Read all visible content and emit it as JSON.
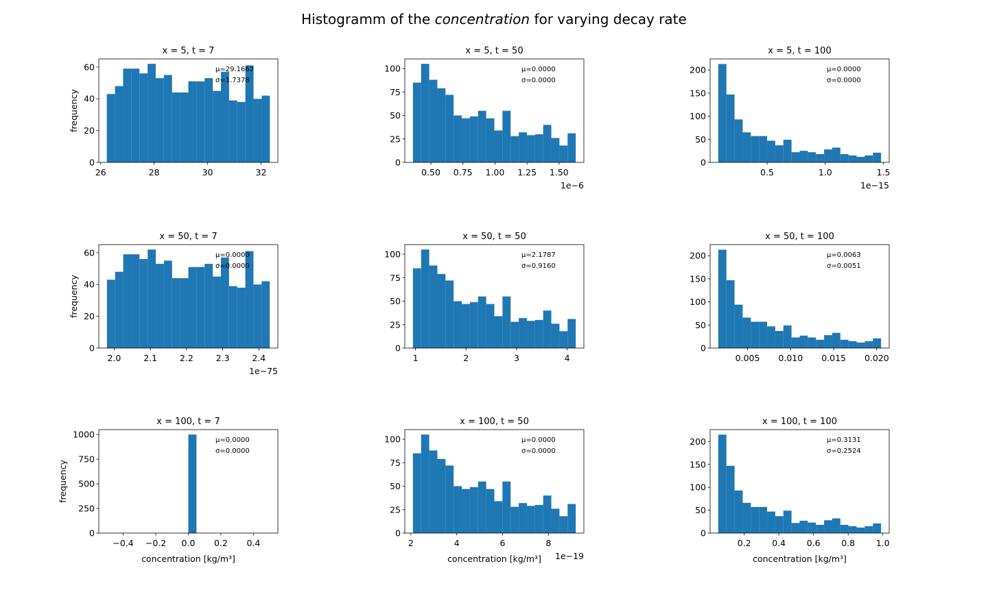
{
  "title_parts": [
    "Histogramm of the ",
    "concentration",
    " for varying decay rate"
  ],
  "chart_data": [
    {
      "type": "histogram",
      "title": "x = 5, t = 7",
      "color": "#1f77b4",
      "bins": [
        26.23,
        26.535,
        26.84,
        27.145,
        27.45,
        27.755,
        28.06,
        28.365,
        28.67,
        28.975,
        29.28,
        29.585,
        29.89,
        30.195,
        30.5,
        30.805,
        31.11,
        31.415,
        31.72,
        32.025,
        32.33
      ],
      "counts": [
        43,
        48,
        59,
        59,
        56,
        62,
        53,
        55,
        44,
        44,
        51,
        51,
        53,
        45,
        57,
        39,
        38,
        61,
        40,
        42
      ],
      "xlim": [
        25.93,
        32.63
      ],
      "ylim": [
        0,
        65.1
      ],
      "xticks": [
        26,
        28,
        30,
        32
      ],
      "yticks": [
        0,
        20,
        40,
        60
      ],
      "annotations": [
        "μ=29.1662",
        "σ=1.7378"
      ],
      "ylabel": "frequency"
    },
    {
      "type": "histogram",
      "title": "x = 5, t = 50",
      "color": "#1f77b4",
      "bins": [
        0.36,
        0.4235,
        0.487,
        0.5505,
        0.614,
        0.6775,
        0.741,
        0.8045,
        0.868,
        0.9315,
        0.995,
        1.0585,
        1.122,
        1.1855,
        1.249,
        1.3125,
        1.376,
        1.4395,
        1.503,
        1.5665,
        1.63
      ],
      "counts": [
        85,
        105,
        88,
        79,
        72,
        50,
        47,
        49,
        55,
        47,
        34,
        55,
        28,
        32,
        29,
        30,
        40,
        26,
        18,
        31
      ],
      "xlim": [
        0.2965,
        1.6935
      ],
      "ylim": [
        0,
        110.25
      ],
      "xticks": [
        {
          "value": 0.5,
          "label": "0.50"
        },
        0.75,
        {
          "value": 1.0,
          "label": "1.00"
        },
        1.25,
        {
          "value": 1.5,
          "label": "1.50"
        }
      ],
      "yticks": [
        0,
        25,
        50,
        75,
        100
      ],
      "annotations": [
        "μ=0.0000",
        "σ=0.0000"
      ],
      "offset_text": "1e−6"
    },
    {
      "type": "histogram",
      "title": "x = 5, t = 100",
      "color": "#1f77b4",
      "bins": [
        0.08,
        0.15,
        0.22,
        0.29,
        0.36,
        0.43,
        0.5,
        0.57,
        0.64,
        0.71,
        0.78,
        0.85,
        0.92,
        0.99,
        1.06,
        1.13,
        1.2,
        1.27,
        1.34,
        1.41,
        1.48
      ],
      "counts": [
        213,
        147,
        93,
        65,
        57,
        57,
        47,
        37,
        49,
        22,
        25,
        22,
        18,
        28,
        32,
        18,
        15,
        12,
        15,
        21
      ],
      "xlim": [
        0.01,
        1.55
      ],
      "ylim": [
        0,
        224
      ],
      "xticks": [
        0.5,
        {
          "value": 1.0,
          "label": "1.0"
        },
        1.5
      ],
      "yticks": [
        0,
        50,
        100,
        150,
        200
      ],
      "annotations": [
        "μ=0.0000",
        "σ=0.0000"
      ],
      "offset_text": "1e−15"
    },
    {
      "type": "histogram",
      "title": "x = 50, t = 7",
      "color": "#1f77b4",
      "bins": [
        1.98,
        2.0025,
        2.025,
        2.0475,
        2.07,
        2.0925,
        2.115,
        2.1375,
        2.16,
        2.1825,
        2.205,
        2.2275,
        2.25,
        2.2725,
        2.295,
        2.3175,
        2.34,
        2.3625,
        2.385,
        2.4075,
        2.43
      ],
      "counts": [
        43,
        48,
        59,
        59,
        56,
        62,
        53,
        55,
        44,
        44,
        51,
        51,
        53,
        45,
        57,
        39,
        38,
        61,
        40,
        42
      ],
      "xlim": [
        1.9575,
        2.4525
      ],
      "ylim": [
        0,
        65.1
      ],
      "xticks": [
        {
          "value": 2.0,
          "label": "2.0"
        },
        2.1,
        2.2,
        2.3,
        2.4
      ],
      "yticks": [
        0,
        20,
        40,
        60
      ],
      "annotations": [
        "μ=0.0000",
        "σ=0.0000"
      ],
      "offset_text": "1e−75",
      "ylabel": "frequency"
    },
    {
      "type": "histogram",
      "title": "x = 50, t = 50",
      "color": "#1f77b4",
      "bins": [
        0.95,
        1.111,
        1.272,
        1.433,
        1.594,
        1.755,
        1.916,
        2.077,
        2.238,
        2.399,
        2.56,
        2.721,
        2.882,
        3.043,
        3.204,
        3.365,
        3.526,
        3.687,
        3.848,
        4.009,
        4.17
      ],
      "counts": [
        85,
        105,
        88,
        79,
        72,
        50,
        47,
        49,
        55,
        47,
        34,
        55,
        28,
        32,
        29,
        30,
        40,
        26,
        18,
        31
      ],
      "xlim": [
        0.789,
        4.331
      ],
      "ylim": [
        0,
        110.25
      ],
      "xticks": [
        1,
        2,
        3,
        4
      ],
      "yticks": [
        0,
        25,
        50,
        75,
        100
      ],
      "annotations": [
        "μ=2.1787",
        "σ=0.9160"
      ]
    },
    {
      "type": "histogram",
      "title": "x = 50, t = 100",
      "color": "#1f77b4",
      "bins": [
        0.0016,
        0.002545,
        0.00349,
        0.004435,
        0.00538,
        0.006325,
        0.00727,
        0.008215,
        0.00916,
        0.010105,
        0.01105,
        0.011995,
        0.01294,
        0.013885,
        0.01483,
        0.015775,
        0.01672,
        0.017665,
        0.01861,
        0.019555,
        0.0205
      ],
      "counts": [
        213,
        147,
        94,
        66,
        57,
        57,
        47,
        37,
        49,
        23,
        27,
        23,
        18,
        28,
        33,
        18,
        15,
        12,
        15,
        21
      ],
      "xlim": [
        0.000655,
        0.021445
      ],
      "ylim": [
        0,
        224
      ],
      "xticks": [
        0.005,
        {
          "value": 0.01,
          "label": "0.010"
        },
        0.015,
        {
          "value": 0.02,
          "label": "0.020"
        }
      ],
      "yticks": [
        0,
        50,
        100,
        150,
        200
      ],
      "annotations": [
        "μ=0.0063",
        "σ=0.0051"
      ]
    },
    {
      "type": "histogram",
      "title": "x = 100, t = 7",
      "color": "#1f77b4",
      "bins": [
        -0.5,
        -0.45,
        -0.4,
        -0.35,
        -0.3,
        -0.25,
        -0.2,
        -0.15,
        -0.1,
        -0.05,
        0,
        0.05,
        0.1,
        0.15,
        0.2,
        0.25,
        0.3,
        0.35,
        0.4,
        0.45,
        0.5
      ],
      "counts": [
        0,
        0,
        0,
        0,
        0,
        0,
        0,
        0,
        0,
        0,
        1000,
        0,
        0,
        0,
        0,
        0,
        0,
        0,
        0,
        0
      ],
      "xlim": [
        -0.55,
        0.55
      ],
      "ylim": [
        0,
        1050
      ],
      "xticks": [
        {
          "value": -0.4,
          "label": "−0.4"
        },
        {
          "value": -0.2,
          "label": "−0.2"
        },
        {
          "value": 0,
          "label": "0.0"
        },
        0.2,
        0.4
      ],
      "yticks": [
        0,
        250,
        500,
        750,
        1000
      ],
      "annotations": [
        "μ=0.0000",
        "σ=0.0000"
      ],
      "xlabel": "concentration [kg/m³]",
      "ylabel": "frequency"
    },
    {
      "type": "histogram",
      "title": "x = 100, t = 50",
      "color": "#1f77b4",
      "bins": [
        2.09,
        2.445,
        2.8,
        3.155,
        3.51,
        3.865,
        4.22,
        4.575,
        4.93,
        5.285,
        5.64,
        5.995,
        6.35,
        6.705,
        7.06,
        7.415,
        7.77,
        8.125,
        8.48,
        8.835,
        9.19
      ],
      "counts": [
        85,
        105,
        88,
        79,
        72,
        50,
        47,
        49,
        55,
        47,
        34,
        55,
        28,
        32,
        29,
        30,
        40,
        26,
        18,
        31
      ],
      "xlim": [
        1.735,
        9.545
      ],
      "ylim": [
        0,
        110.25
      ],
      "xticks": [
        2,
        4,
        6,
        8
      ],
      "yticks": [
        0,
        25,
        50,
        75,
        100
      ],
      "annotations": [
        "μ=0.0000",
        "σ=0.0000"
      ],
      "offset_text": "1e−19",
      "xlabel": "concentration [kg/m³]"
    },
    {
      "type": "histogram",
      "title": "x = 100, t = 100",
      "color": "#1f77b4",
      "bins": [
        0.05,
        0.097,
        0.144,
        0.191,
        0.238,
        0.285,
        0.332,
        0.379,
        0.426,
        0.473,
        0.52,
        0.567,
        0.614,
        0.661,
        0.708,
        0.755,
        0.802,
        0.849,
        0.896,
        0.943,
        0.99
      ],
      "counts": [
        215,
        147,
        93,
        66,
        57,
        57,
        47,
        37,
        49,
        22,
        27,
        23,
        18,
        28,
        32,
        18,
        15,
        12,
        15,
        21
      ],
      "xlim": [
        0.003,
        1.037
      ],
      "ylim": [
        0,
        226
      ],
      "xticks": [
        0.2,
        0.4,
        0.6,
        0.8,
        {
          "value": 1.0,
          "label": "1.0"
        }
      ],
      "yticks": [
        0,
        50,
        100,
        150,
        200
      ],
      "annotations": [
        "μ=0.3131",
        "σ=0.2524"
      ],
      "xlabel": "concentration [kg/m³]"
    }
  ]
}
